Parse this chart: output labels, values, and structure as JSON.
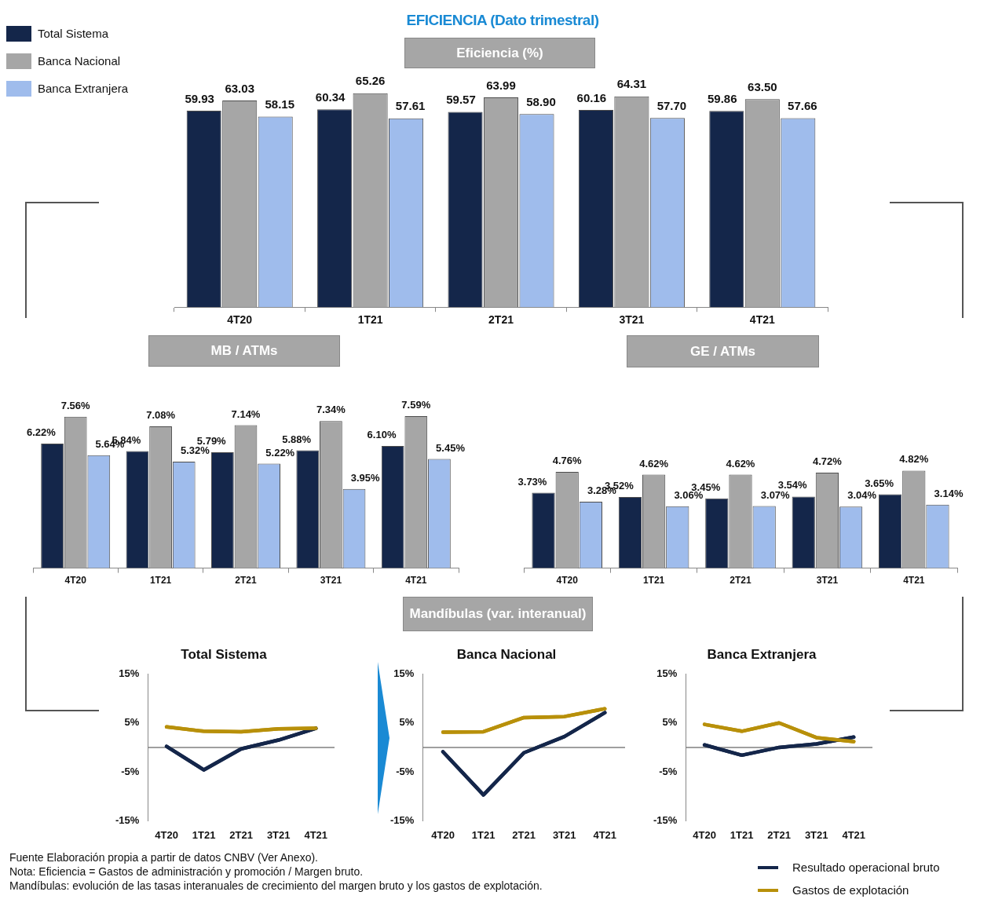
{
  "chart_data": [
    {
      "type": "bar",
      "title": "EFICIENCIA (Dato trimestral)",
      "subtitle": "Eficiencia (%)",
      "categories": [
        "4T20",
        "1T21",
        "2T21",
        "3T21",
        "4T21"
      ],
      "legend": "top left",
      "tick_labels": "x",
      "series": [
        {
          "name": "Total Sistema",
          "color": "#14264a",
          "values": [
            59.93,
            60.34,
            59.57,
            60.16,
            59.86
          ],
          "value_labels": [
            "59.93",
            "60.34",
            "59.57",
            "60.16",
            "59.86"
          ]
        },
        {
          "name": "Banca Nacional",
          "color": "#a6a6a6",
          "values": [
            63.03,
            65.26,
            63.99,
            64.31,
            63.5
          ],
          "value_labels": [
            "63.03",
            "65.26",
            "63.99",
            "64.31",
            "63.50"
          ]
        },
        {
          "name": "Banca Extranjera",
          "color": "#9fbcec",
          "values": [
            58.15,
            57.61,
            58.9,
            57.7,
            57.66
          ],
          "value_labels": [
            "58.15",
            "57.61",
            "58.90",
            "57.70",
            "57.66"
          ]
        }
      ]
    },
    {
      "type": "bar",
      "title": "MB / ATMs",
      "categories": [
        "4T20",
        "1T21",
        "2T21",
        "3T21",
        "4T21"
      ],
      "tick_labels": "x",
      "series": [
        {
          "color": "#14264a",
          "values": [
            6.22,
            5.84,
            5.79,
            5.88,
            6.1
          ],
          "value_labels": [
            "6.22%",
            "5.84%",
            "5.79%",
            "5.88%",
            "6.10%"
          ]
        },
        {
          "color": "#a6a6a6",
          "values": [
            7.56,
            7.08,
            7.14,
            7.34,
            7.59
          ],
          "value_labels": [
            "7.56%",
            "7.08%",
            "7.14%",
            "7.34%",
            "7.59%"
          ]
        },
        {
          "color": "#9fbcec",
          "values": [
            5.64,
            5.32,
            5.22,
            3.95,
            5.45
          ],
          "value_labels": [
            "5.64%",
            "5.32%",
            "5.22%",
            "3.95%",
            "5.45%"
          ]
        }
      ]
    },
    {
      "type": "bar",
      "title": "GE / ATMs",
      "categories": [
        "4T20",
        "1T21",
        "2T21",
        "3T21",
        "4T21"
      ],
      "tick_labels": "x",
      "series": [
        {
          "color": "#14264a",
          "values": [
            3.73,
            3.52,
            3.45,
            3.54,
            3.65
          ],
          "value_labels": [
            "3.73%",
            "3.52%",
            "3.45%",
            "3.54%",
            "3.65%"
          ]
        },
        {
          "color": "#a6a6a6",
          "values": [
            4.76,
            4.62,
            4.62,
            4.72,
            4.82
          ],
          "value_labels": [
            "4.76%",
            "4.62%",
            "4.62%",
            "4.72%",
            "4.82%"
          ]
        },
        {
          "color": "#9fbcec",
          "values": [
            3.28,
            3.06,
            3.07,
            3.04,
            3.14
          ],
          "value_labels": [
            "3.28%",
            "3.06%",
            "3.07%",
            "3.04%",
            "3.14%"
          ]
        }
      ]
    },
    {
      "type": "line",
      "title": "Total Sistema",
      "categories": [
        "4T20",
        "1T21",
        "2T21",
        "3T21",
        "4T21"
      ],
      "ylim": [
        -15,
        15
      ],
      "yticks": [
        {
          "value": 15,
          "label": "15%"
        },
        {
          "value": 5,
          "label": "5%"
        },
        {
          "value": -5,
          "label": "-5%"
        },
        {
          "value": -15,
          "label": "-15%"
        }
      ],
      "marker": "none",
      "ref_lines": [
        {
          "axis": "y",
          "value": 0,
          "color": "#7f7f7f"
        }
      ],
      "series": [
        {
          "color": "#14264a",
          "values": [
            0.2,
            -4.6,
            -0.3,
            1.5,
            3.9
          ]
        },
        {
          "color": "#b8900a",
          "values": [
            4.2,
            3.3,
            3.2,
            3.8,
            3.9
          ]
        }
      ]
    },
    {
      "type": "line",
      "title": "Banca Nacional",
      "categories": [
        "4T20",
        "1T21",
        "2T21",
        "3T21",
        "4T21"
      ],
      "ylim": [
        -15,
        15
      ],
      "yticks": [
        {
          "value": 15,
          "label": "15%"
        },
        {
          "value": 5,
          "label": "5%"
        },
        {
          "value": -5,
          "label": "-5%"
        },
        {
          "value": -15,
          "label": "-15%"
        }
      ],
      "marker": "none",
      "ref_lines": [
        {
          "axis": "y",
          "value": 0,
          "color": "#7f7f7f"
        }
      ],
      "series": [
        {
          "color": "#14264a",
          "values": [
            -0.9,
            -9.7,
            -1.1,
            2.2,
            7.1
          ]
        },
        {
          "color": "#b8900a",
          "values": [
            3.1,
            3.2,
            6.1,
            6.3,
            7.9
          ]
        }
      ]
    },
    {
      "type": "line",
      "title": "Banca Extranjera",
      "categories": [
        "4T20",
        "1T21",
        "2T21",
        "3T21",
        "4T21"
      ],
      "ylim": [
        -15,
        15
      ],
      "yticks": [
        {
          "value": 15,
          "label": "15%"
        },
        {
          "value": 5,
          "label": "5%"
        },
        {
          "value": -5,
          "label": "-5%"
        },
        {
          "value": -15,
          "label": "-15%"
        }
      ],
      "marker": "none",
      "legend": "bottom right",
      "ref_lines": [
        {
          "axis": "y",
          "value": 0,
          "color": "#7f7f7f"
        }
      ],
      "series": [
        {
          "name": "Resultado operacional bruto",
          "color": "#14264a",
          "values": [
            0.5,
            -1.6,
            0,
            0.7,
            2.1
          ]
        },
        {
          "name": "Gastos de explotación",
          "color": "#b8900a",
          "values": [
            4.7,
            3.3,
            5.0,
            2.0,
            1.2
          ]
        }
      ]
    },
    {
      "type": "other",
      "title": "Mandíbulas (var. interanual)",
      "annotations": [
        "Fuente Elaboración propia a partir de datos CNBV (Ver Anexo).",
        "Nota: Eficiencia = Gastos de administración y promoción / Margen bruto.",
        "Mandíbulas: evolución de las tasas interanuales de crecimiento del margen bruto y los gastos de explotación."
      ]
    }
  ]
}
